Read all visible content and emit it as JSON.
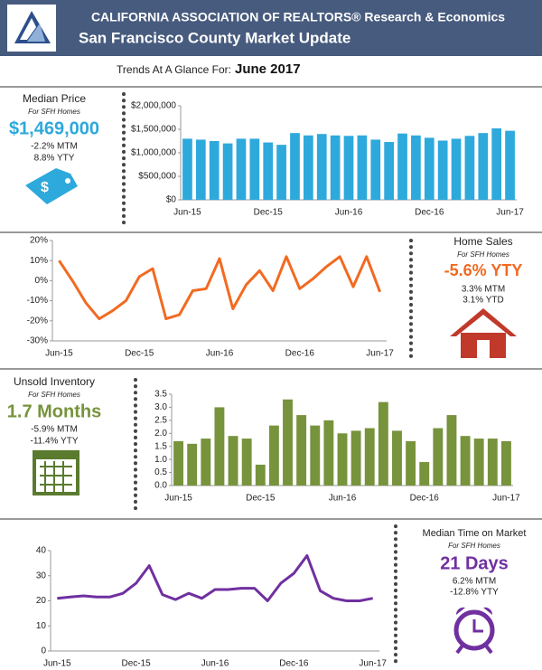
{
  "header": {
    "line1": "CALIFORNIA ASSOCIATION OF REALTORS® Research & Economics",
    "line2": "San Francisco County Market Update"
  },
  "trends": {
    "label": "Trends At A Glance For:",
    "date": "June 2017"
  },
  "panels": [
    {
      "title": "Median Price",
      "subtitle": "For SFH Homes",
      "headline": "$1,469,000",
      "lines": [
        "-2.2% MTM",
        "8.8% YTY"
      ]
    },
    {
      "title": "Home Sales",
      "subtitle": "For SFH Homes",
      "headline": "-5.6% YTY",
      "lines": [
        "3.3% MTM",
        "3.1% YTD"
      ]
    },
    {
      "title": "Unsold Inventory",
      "subtitle": "For SFH Homes",
      "headline": "1.7 Months",
      "lines": [
        "-5.9% MTM",
        "-11.4% YTY"
      ]
    },
    {
      "title": "Median Time on Market",
      "subtitle": "For SFH Homes",
      "headline": "21 Days",
      "lines": [
        "6.2% MTM",
        "-12.8% YTY"
      ]
    }
  ],
  "chart_data": [
    {
      "type": "bar",
      "color": "#2ea9dc",
      "categories": [
        "Jun-15",
        null,
        null,
        null,
        null,
        null,
        "Dec-15",
        null,
        null,
        null,
        null,
        null,
        "Jun-16",
        null,
        null,
        null,
        null,
        null,
        "Dec-16",
        null,
        null,
        null,
        null,
        null,
        "Jun-17"
      ],
      "values": [
        1300000,
        1280000,
        1250000,
        1200000,
        1300000,
        1300000,
        1220000,
        1170000,
        1420000,
        1370000,
        1400000,
        1370000,
        1360000,
        1370000,
        1280000,
        1230000,
        1410000,
        1370000,
        1320000,
        1260000,
        1300000,
        1360000,
        1420000,
        1520000,
        1469000
      ],
      "ylim": [
        0,
        2000000
      ],
      "yticks": [
        {
          "value": 0,
          "label": "$0"
        },
        {
          "value": 500000,
          "label": "$500,000"
        },
        {
          "value": 1000000,
          "label": "$1,000,000"
        },
        {
          "value": 1500000,
          "label": "$1,500,000"
        },
        {
          "value": 2000000,
          "label": "$2,000,000"
        }
      ]
    },
    {
      "type": "line",
      "color": "#f26a21",
      "categories": [
        "Jun-15",
        null,
        null,
        null,
        null,
        null,
        "Dec-15",
        null,
        null,
        null,
        null,
        null,
        "Jun-16",
        null,
        null,
        null,
        null,
        null,
        "Dec-16",
        null,
        null,
        null,
        null,
        null,
        "Jun-17"
      ],
      "values": [
        10,
        0,
        -11,
        -19,
        -15,
        -10,
        2,
        6,
        -19,
        -17,
        -5,
        -4,
        11,
        -14,
        -2,
        5,
        -5,
        12,
        -4,
        1,
        7,
        12,
        -3,
        12,
        -5.6
      ],
      "ylim": [
        -30,
        20
      ],
      "yticks": [
        {
          "value": -30,
          "label": "-30%"
        },
        {
          "value": -20,
          "label": "-20%"
        },
        {
          "value": -10,
          "label": "-10%"
        },
        {
          "value": 0,
          "label": "0%"
        },
        {
          "value": 10,
          "label": "10%"
        },
        {
          "value": 20,
          "label": "20%"
        }
      ]
    },
    {
      "type": "bar",
      "color": "#77933c",
      "categories": [
        "Jun-15",
        null,
        null,
        null,
        null,
        null,
        "Dec-15",
        null,
        null,
        null,
        null,
        null,
        "Jun-16",
        null,
        null,
        null,
        null,
        null,
        "Dec-16",
        null,
        null,
        null,
        null,
        null,
        "Jun-17"
      ],
      "values": [
        1.7,
        1.6,
        1.8,
        3.0,
        1.9,
        1.8,
        0.8,
        2.3,
        3.3,
        2.7,
        2.3,
        2.5,
        2.0,
        2.1,
        2.2,
        3.2,
        2.1,
        1.7,
        0.9,
        2.2,
        2.7,
        1.9,
        1.8,
        1.8,
        1.7
      ],
      "ylim": [
        0,
        3.5
      ],
      "yticks": [
        {
          "value": 0,
          "label": "0.0"
        },
        0.5,
        {
          "value": 1,
          "label": "1.0"
        },
        1.5,
        {
          "value": 2,
          "label": "2.0"
        },
        2.5,
        {
          "value": 3,
          "label": "3.0"
        },
        3.5
      ]
    },
    {
      "type": "line",
      "color": "#7030a0",
      "categories": [
        "Jun-15",
        null,
        null,
        null,
        null,
        null,
        "Dec-15",
        null,
        null,
        null,
        null,
        null,
        "Jun-16",
        null,
        null,
        null,
        null,
        null,
        "Dec-16",
        null,
        null,
        null,
        null,
        null,
        "Jun-17"
      ],
      "values": [
        21,
        21.5,
        22,
        21.5,
        21.5,
        23,
        27,
        34,
        22.5,
        20.5,
        23,
        21,
        24.5,
        24.5,
        25,
        25,
        20,
        27,
        31,
        38,
        24,
        21,
        20,
        20,
        21
      ],
      "ylim": [
        0,
        40
      ],
      "yticks": [
        0,
        10,
        20,
        30,
        40
      ]
    }
  ]
}
